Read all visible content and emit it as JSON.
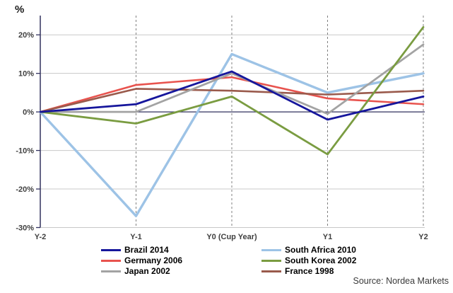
{
  "source": "Source: Nordea Markets",
  "chart_data": {
    "type": "line",
    "title": "",
    "axis_unit_label": "%",
    "categories": [
      "Y-2",
      "Y-1",
      "Y0 (Cup Year)",
      "Y1",
      "Y2"
    ],
    "xlabel": "",
    "ylabel": "%",
    "ylim": [
      -30,
      25
    ],
    "grid": "horizontal solid gray lines every 10%, vertical dashed gray lines at each category, dark navy zero line and y-axis",
    "legend_position": "bottom, two columns",
    "y_ticks": [
      {
        "value": 20,
        "label": "20%"
      },
      {
        "value": 10,
        "label": "10%"
      },
      {
        "value": 0,
        "label": "0%"
      },
      {
        "value": -10,
        "label": "-10%"
      },
      {
        "value": -20,
        "label": "-20%"
      },
      {
        "value": -30,
        "label": "-30%"
      }
    ],
    "series": [
      {
        "name": "Brazil 2014",
        "color": "#16169C",
        "width": 2.8,
        "values": [
          0,
          2,
          10.5,
          -2,
          4
        ]
      },
      {
        "name": "Germany 2006",
        "color": "#E8534E",
        "width": 2.6,
        "values": [
          0,
          7,
          9,
          3.5,
          2
        ]
      },
      {
        "name": "Japan 2002",
        "color": "#A3A3A3",
        "width": 2.8,
        "values": [
          0,
          0,
          10,
          -0.5,
          17.5
        ]
      },
      {
        "name": "South Africa 2010",
        "color": "#9DC3E6",
        "width": 3.4,
        "values": [
          0,
          -27,
          15,
          5,
          10
        ]
      },
      {
        "name": "South Korea 2002",
        "color": "#7A9C41",
        "width": 2.8,
        "values": [
          0,
          -3,
          4,
          -11,
          22
        ]
      },
      {
        "name": "France 1998",
        "color": "#9A5A4C",
        "width": 2.6,
        "values": [
          0,
          6,
          5.5,
          4.5,
          5.5
        ]
      }
    ],
    "colors": {
      "axis": "#32325F",
      "gridline": "#C8C8C8",
      "dashed_gridline": "#808080",
      "tick_label": "#404040"
    }
  }
}
